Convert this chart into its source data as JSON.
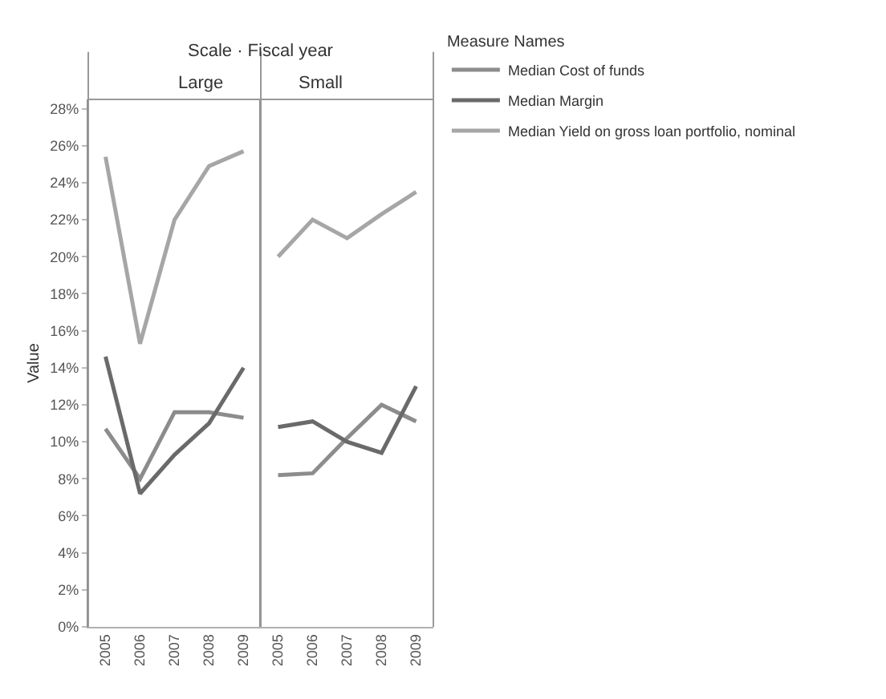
{
  "chart_data": [
    {
      "type": "line",
      "title": "Large",
      "annotations": [
        "Scale · Fiscal year"
      ],
      "ylabel": "Value",
      "legend_title": "Measure Names",
      "legend": "top right",
      "marker": "none",
      "categories": [
        "2005",
        "2006",
        "2007",
        "2008",
        "2009"
      ],
      "ylim": [
        0,
        28.5
      ],
      "yticks": [
        {
          "value": 0,
          "label": "0%"
        },
        {
          "value": 2,
          "label": "2%"
        },
        {
          "value": 4,
          "label": "4%"
        },
        {
          "value": 6,
          "label": "6%"
        },
        {
          "value": 8,
          "label": "8%"
        },
        {
          "value": 10,
          "label": "10%"
        },
        {
          "value": 12,
          "label": "12%"
        },
        {
          "value": 14,
          "label": "14%"
        },
        {
          "value": 16,
          "label": "16%"
        },
        {
          "value": 18,
          "label": "18%"
        },
        {
          "value": 20,
          "label": "20%"
        },
        {
          "value": 22,
          "label": "22%"
        },
        {
          "value": 24,
          "label": "24%"
        },
        {
          "value": 26,
          "label": "26%"
        },
        {
          "value": 28,
          "label": "28%"
        }
      ],
      "series": [
        {
          "name": "Median Cost of funds",
          "color": "#8c8c8c",
          "values": [
            10.7,
            8.0,
            11.6,
            11.6,
            11.3
          ]
        },
        {
          "name": "Median Margin",
          "color": "#6a6a6a",
          "values": [
            14.6,
            7.2,
            9.3,
            11.0,
            14.0
          ]
        },
        {
          "name": "Median Yield on gross loan portfolio, nominal",
          "color": "#a6a6a6",
          "values": [
            25.4,
            15.3,
            22.0,
            24.9,
            25.7
          ]
        }
      ]
    },
    {
      "type": "line",
      "title": "Small",
      "tick_labels": "x",
      "marker": "none",
      "categories": [
        "2005",
        "2006",
        "2007",
        "2008",
        "2009"
      ],
      "ylim": [
        0,
        28.5
      ],
      "series": [
        {
          "color": "#8c8c8c",
          "values": [
            8.2,
            8.3,
            10.2,
            12.0,
            11.1
          ]
        },
        {
          "color": "#6a6a6a",
          "values": [
            10.8,
            11.1,
            10.0,
            9.4,
            13.0
          ]
        },
        {
          "color": "#a6a6a6",
          "values": [
            20.0,
            22.0,
            21.0,
            22.3,
            23.5
          ]
        }
      ]
    }
  ]
}
